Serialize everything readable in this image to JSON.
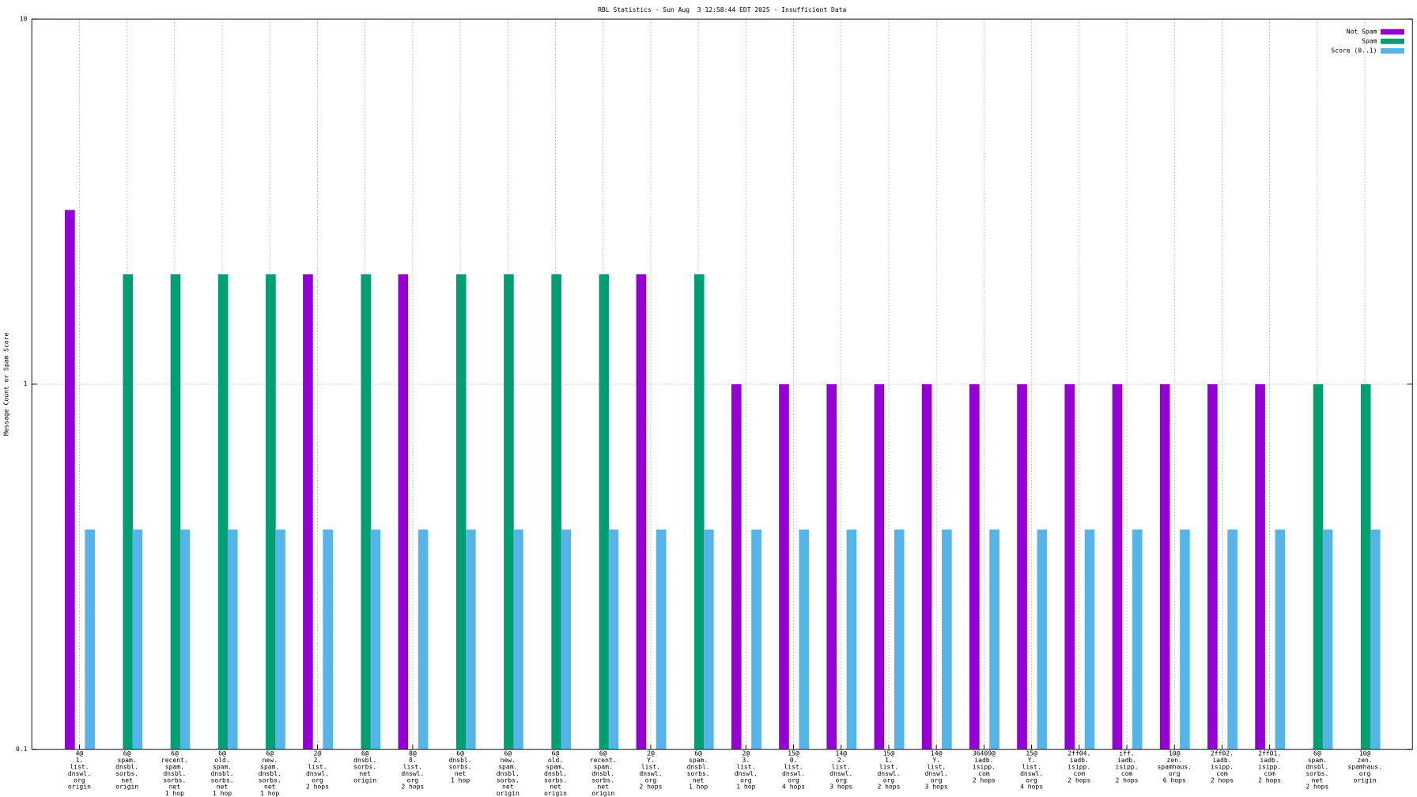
{
  "chart_data": {
    "type": "bar",
    "title": "RBL Statistics - Sun Aug  3 12:58:44 EDT 2025 - Insufficient Data",
    "y_label": "Message Count or Spam Score",
    "log_scale_y": true,
    "grid": true,
    "legend_position": "top-right",
    "ylim": [
      0.1,
      10
    ],
    "yticks": [
      0.1,
      1,
      10
    ],
    "categories": [
      [
        "4@",
        "1.",
        "list.",
        "dnswl.",
        "org",
        "origin"
      ],
      [
        "6@",
        "spam.",
        "dnsbl.",
        "sorbs.",
        "net",
        "origin"
      ],
      [
        "6@",
        "recent.",
        "spam.",
        "dnsbl.",
        "sorbs.",
        "net",
        "1 hop"
      ],
      [
        "6@",
        "old.",
        "spam.",
        "dnsbl.",
        "sorbs.",
        "net",
        "1 hop"
      ],
      [
        "6@",
        "new.",
        "spam.",
        "dnsbl.",
        "sorbs.",
        "net",
        "1 hop"
      ],
      [
        "2@",
        "2.",
        "list.",
        "dnswl.",
        "org",
        "2 hops"
      ],
      [
        "6@",
        "dnsbl.",
        "sorbs.",
        "net",
        "origin"
      ],
      [
        "8@",
        "8.",
        "list.",
        "dnswl.",
        "org",
        "2 hops"
      ],
      [
        "6@",
        "dnsbl.",
        "sorbs.",
        "net",
        "1 hop"
      ],
      [
        "6@",
        "new.",
        "spam.",
        "dnsbl.",
        "sorbs.",
        "net",
        "origin"
      ],
      [
        "6@",
        "old.",
        "spam.",
        "dnsbl.",
        "sorbs.",
        "net",
        "origin"
      ],
      [
        "6@",
        "recent.",
        "spam.",
        "dnsbl.",
        "sorbs.",
        "net",
        "origin"
      ],
      [
        "2@",
        "Y.",
        "list.",
        "dnswl.",
        "org",
        "2 hops"
      ],
      [
        "6@",
        "spam.",
        "dnsbl.",
        "sorbs.",
        "net",
        "1 hop"
      ],
      [
        "2@",
        "3.",
        "list.",
        "dnswl.",
        "org",
        "1 hop"
      ],
      [
        "15@",
        "0.",
        "list.",
        "dnswl.",
        "org",
        "4 hops"
      ],
      [
        "14@",
        "2.",
        "list.",
        "dnswl.",
        "org",
        "3 hops"
      ],
      [
        "15@",
        "1.",
        "list.",
        "dnswl.",
        "org",
        "2 hops"
      ],
      [
        "14@",
        "Y.",
        "list.",
        "dnswl.",
        "org",
        "3 hops"
      ],
      [
        "36409@",
        "iadb.",
        "isipp.",
        "com",
        "2 hops"
      ],
      [
        "15@",
        "Y.",
        "list.",
        "dnswl.",
        "org",
        "4 hops"
      ],
      [
        "2ff04.",
        "iadb.",
        "isipp.",
        "com",
        "2 hops"
      ],
      [
        "iff.",
        "iadb.",
        "isipp.",
        "com",
        "2 hops"
      ],
      [
        "10@",
        "zen.",
        "spamhaus.",
        "org",
        "6 hops"
      ],
      [
        "2ff02.",
        "iadb.",
        "isipp.",
        "com",
        "2 hops"
      ],
      [
        "2ff01.",
        "iadb.",
        "isipp.",
        "com",
        "2 hops"
      ],
      [
        "6@",
        "spam.",
        "dnsbl.",
        "sorbs.",
        "net",
        "2 hops"
      ],
      [
        "10@",
        "zen.",
        "spamhaus.",
        "org",
        "origin"
      ]
    ],
    "series": [
      {
        "name": "Not Spam",
        "color": "#9400d3",
        "values": [
          3,
          null,
          null,
          null,
          null,
          2,
          null,
          2,
          null,
          null,
          null,
          null,
          2,
          null,
          1,
          1,
          1,
          1,
          1,
          1,
          1,
          1,
          1,
          1,
          1,
          1,
          null,
          null
        ]
      },
      {
        "name": "Spam",
        "color": "#009e73",
        "values": [
          null,
          2,
          2,
          2,
          2,
          null,
          2,
          null,
          2,
          2,
          2,
          2,
          null,
          2,
          null,
          null,
          null,
          null,
          null,
          null,
          null,
          null,
          null,
          null,
          null,
          null,
          1,
          1
        ]
      },
      {
        "name": "Score (0..1)",
        "color": "#56b4e9",
        "values": [
          0.4,
          0.4,
          0.4,
          0.4,
          0.4,
          0.4,
          0.4,
          0.4,
          0.4,
          0.4,
          0.4,
          0.4,
          0.4,
          0.4,
          0.4,
          0.4,
          0.4,
          0.4,
          0.4,
          0.4,
          0.4,
          0.4,
          0.4,
          0.4,
          0.4,
          0.4,
          0.4,
          0.4
        ]
      }
    ]
  }
}
